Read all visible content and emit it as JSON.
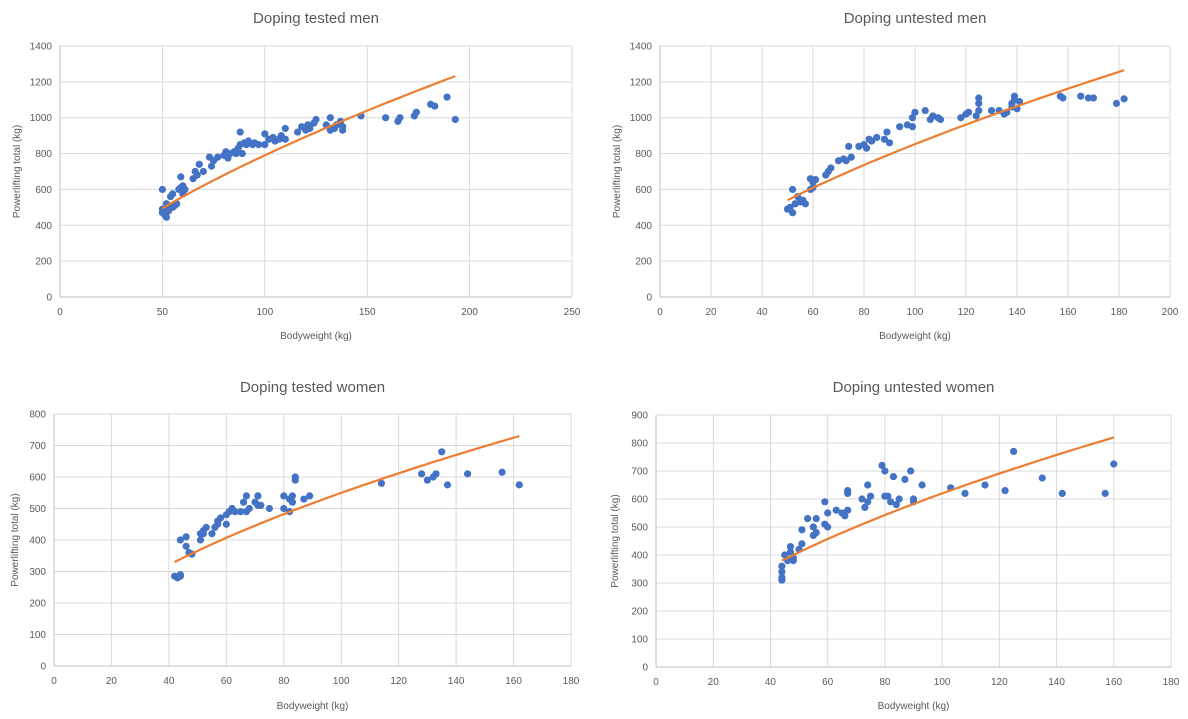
{
  "chart_data": [
    {
      "type": "scatter",
      "title": "Doping tested men",
      "xlabel": "Bodyweight (kg)",
      "ylabel": "Powerlifting total (kg)",
      "xlim": [
        0,
        250
      ],
      "xstep": 50,
      "ylim": [
        0,
        1400
      ],
      "ystep": 200,
      "grid": true,
      "colors": {
        "points": "#4472c4",
        "trend": "#ed7d31"
      },
      "trendline": {
        "type": "power",
        "x": [
          50,
          193
        ],
        "y": [
          495,
          1232
        ]
      },
      "points": [
        [
          50,
          490
        ],
        [
          50,
          470
        ],
        [
          51,
          460
        ],
        [
          52,
          445
        ],
        [
          52,
          500
        ],
        [
          53,
          480
        ],
        [
          50,
          600
        ],
        [
          52,
          520
        ],
        [
          54,
          560
        ],
        [
          55,
          575
        ],
        [
          55,
          500
        ],
        [
          56,
          510
        ],
        [
          57,
          520
        ],
        [
          58,
          600
        ],
        [
          59,
          610
        ],
        [
          59,
          670
        ],
        [
          60,
          575
        ],
        [
          60,
          620
        ],
        [
          61,
          600
        ],
        [
          65,
          660
        ],
        [
          66,
          700
        ],
        [
          67,
          680
        ],
        [
          68,
          740
        ],
        [
          70,
          700
        ],
        [
          73,
          780
        ],
        [
          74,
          730
        ],
        [
          75,
          760
        ],
        [
          77,
          780
        ],
        [
          80,
          790
        ],
        [
          81,
          810
        ],
        [
          82,
          775
        ],
        [
          83,
          800
        ],
        [
          85,
          810
        ],
        [
          86,
          800
        ],
        [
          87,
          830
        ],
        [
          88,
          850
        ],
        [
          88,
          920
        ],
        [
          89,
          800
        ],
        [
          90,
          860
        ],
        [
          91,
          850
        ],
        [
          92,
          870
        ],
        [
          94,
          850
        ],
        [
          95,
          860
        ],
        [
          97,
          850
        ],
        [
          100,
          850
        ],
        [
          100,
          910
        ],
        [
          102,
          880
        ],
        [
          104,
          890
        ],
        [
          105,
          870
        ],
        [
          107,
          880
        ],
        [
          108,
          900
        ],
        [
          110,
          940
        ],
        [
          110,
          880
        ],
        [
          116,
          920
        ],
        [
          118,
          950
        ],
        [
          120,
          930
        ],
        [
          121,
          960
        ],
        [
          122,
          940
        ],
        [
          124,
          970
        ],
        [
          125,
          990
        ],
        [
          130,
          960
        ],
        [
          132,
          1000
        ],
        [
          132,
          930
        ],
        [
          134,
          940
        ],
        [
          135,
          960
        ],
        [
          137,
          980
        ],
        [
          138,
          930
        ],
        [
          138,
          950
        ],
        [
          147,
          1010
        ],
        [
          159,
          1000
        ],
        [
          165,
          980
        ],
        [
          166,
          1000
        ],
        [
          173,
          1010
        ],
        [
          174,
          1030
        ],
        [
          181,
          1075
        ],
        [
          183,
          1065
        ],
        [
          189,
          1115
        ],
        [
          193,
          990
        ]
      ]
    },
    {
      "type": "scatter",
      "title": "Doping untested men",
      "xlabel": "Bodyweight (kg)",
      "ylabel": "Powerlifting total (kg)",
      "xlim": [
        0,
        200
      ],
      "xstep": 20,
      "ylim": [
        0,
        1400
      ],
      "ystep": 200,
      "grid": true,
      "colors": {
        "points": "#4472c4",
        "trend": "#ed7d31"
      },
      "trendline": {
        "type": "power",
        "x": [
          50,
          182
        ],
        "y": [
          540,
          1265
        ]
      },
      "points": [
        [
          50,
          490
        ],
        [
          51,
          500
        ],
        [
          52,
          470
        ],
        [
          52,
          600
        ],
        [
          53,
          520
        ],
        [
          54,
          560
        ],
        [
          55,
          530
        ],
        [
          56,
          540
        ],
        [
          57,
          520
        ],
        [
          59,
          600
        ],
        [
          59,
          660
        ],
        [
          60,
          610
        ],
        [
          60,
          640
        ],
        [
          61,
          655
        ],
        [
          65,
          680
        ],
        [
          66,
          700
        ],
        [
          67,
          720
        ],
        [
          70,
          760
        ],
        [
          72,
          770
        ],
        [
          73,
          760
        ],
        [
          74,
          840
        ],
        [
          75,
          780
        ],
        [
          78,
          840
        ],
        [
          80,
          850
        ],
        [
          81,
          830
        ],
        [
          82,
          880
        ],
        [
          83,
          870
        ],
        [
          85,
          890
        ],
        [
          88,
          880
        ],
        [
          89,
          920
        ],
        [
          90,
          860
        ],
        [
          94,
          950
        ],
        [
          97,
          960
        ],
        [
          99,
          1000
        ],
        [
          99,
          950
        ],
        [
          100,
          1030
        ],
        [
          104,
          1040
        ],
        [
          106,
          990
        ],
        [
          107,
          1010
        ],
        [
          109,
          1000
        ],
        [
          110,
          990
        ],
        [
          118,
          1000
        ],
        [
          120,
          1020
        ],
        [
          121,
          1030
        ],
        [
          124,
          1010
        ],
        [
          125,
          1040
        ],
        [
          125,
          1080
        ],
        [
          125,
          1110
        ],
        [
          130,
          1040
        ],
        [
          133,
          1040
        ],
        [
          135,
          1020
        ],
        [
          136,
          1030
        ],
        [
          138,
          1060
        ],
        [
          138,
          1080
        ],
        [
          139,
          1100
        ],
        [
          139,
          1120
        ],
        [
          140,
          1050
        ],
        [
          141,
          1090
        ],
        [
          157,
          1120
        ],
        [
          158,
          1110
        ],
        [
          165,
          1120
        ],
        [
          168,
          1110
        ],
        [
          170,
          1110
        ],
        [
          179,
          1080
        ],
        [
          182,
          1105
        ]
      ]
    },
    {
      "type": "scatter",
      "title": "Doping tested women",
      "xlabel": "Bodyweight (kg)",
      "ylabel": "Powerlifting total (kg)",
      "xlim": [
        0,
        180
      ],
      "xstep": 20,
      "ylim": [
        0,
        800
      ],
      "ystep": 100,
      "grid": true,
      "colors": {
        "points": "#4472c4",
        "trend": "#ed7d31"
      },
      "trendline": {
        "type": "power",
        "x": [
          42,
          162
        ],
        "y": [
          330,
          730
        ]
      },
      "points": [
        [
          42,
          285
        ],
        [
          43,
          280
        ],
        [
          44,
          285
        ],
        [
          44,
          290
        ],
        [
          44,
          400
        ],
        [
          46,
          380
        ],
        [
          46,
          410
        ],
        [
          47,
          360
        ],
        [
          48,
          355
        ],
        [
          51,
          420
        ],
        [
          51,
          400
        ],
        [
          52,
          420
        ],
        [
          52,
          430
        ],
        [
          53,
          440
        ],
        [
          55,
          420
        ],
        [
          56,
          440
        ],
        [
          57,
          450
        ],
        [
          57,
          460
        ],
        [
          58,
          470
        ],
        [
          60,
          450
        ],
        [
          60,
          480
        ],
        [
          61,
          490
        ],
        [
          62,
          500
        ],
        [
          63,
          490
        ],
        [
          65,
          490
        ],
        [
          66,
          520
        ],
        [
          67,
          540
        ],
        [
          67,
          490
        ],
        [
          68,
          500
        ],
        [
          70,
          520
        ],
        [
          71,
          540
        ],
        [
          71,
          510
        ],
        [
          72,
          510
        ],
        [
          75,
          500
        ],
        [
          80,
          540
        ],
        [
          80,
          500
        ],
        [
          82,
          530
        ],
        [
          82,
          490
        ],
        [
          83,
          520
        ],
        [
          83,
          540
        ],
        [
          84,
          600
        ],
        [
          84,
          590
        ],
        [
          87,
          530
        ],
        [
          89,
          540
        ],
        [
          114,
          580
        ],
        [
          128,
          610
        ],
        [
          130,
          590
        ],
        [
          132,
          600
        ],
        [
          133,
          610
        ],
        [
          135,
          680
        ],
        [
          137,
          575
        ],
        [
          144,
          610
        ],
        [
          156,
          615
        ],
        [
          162,
          575
        ]
      ]
    },
    {
      "type": "scatter",
      "title": "Doping untested women",
      "xlabel": "Bodyweight (kg)",
      "ylabel": "Powerlifting total (kg)",
      "xlim": [
        0,
        180
      ],
      "xstep": 20,
      "ylim": [
        0,
        900
      ],
      "ystep": 100,
      "grid": true,
      "colors": {
        "points": "#4472c4",
        "trend": "#ed7d31"
      },
      "trendline": {
        "type": "power",
        "x": [
          44,
          160
        ],
        "y": [
          380,
          820
        ]
      },
      "points": [
        [
          44,
          310
        ],
        [
          44,
          320
        ],
        [
          44,
          340
        ],
        [
          44,
          360
        ],
        [
          45,
          400
        ],
        [
          46,
          380
        ],
        [
          47,
          410
        ],
        [
          47,
          430
        ],
        [
          48,
          390
        ],
        [
          48,
          380
        ],
        [
          50,
          420
        ],
        [
          51,
          440
        ],
        [
          51,
          490
        ],
        [
          53,
          530
        ],
        [
          55,
          470
        ],
        [
          55,
          500
        ],
        [
          56,
          530
        ],
        [
          56,
          480
        ],
        [
          59,
          510
        ],
        [
          59,
          590
        ],
        [
          60,
          500
        ],
        [
          60,
          550
        ],
        [
          63,
          560
        ],
        [
          65,
          550
        ],
        [
          66,
          540
        ],
        [
          67,
          620
        ],
        [
          67,
          630
        ],
        [
          67,
          560
        ],
        [
          72,
          600
        ],
        [
          73,
          570
        ],
        [
          74,
          590
        ],
        [
          74,
          650
        ],
        [
          75,
          610
        ],
        [
          79,
          720
        ],
        [
          80,
          610
        ],
        [
          80,
          700
        ],
        [
          81,
          610
        ],
        [
          82,
          590
        ],
        [
          83,
          680
        ],
        [
          84,
          580
        ],
        [
          85,
          600
        ],
        [
          87,
          670
        ],
        [
          89,
          700
        ],
        [
          90,
          590
        ],
        [
          90,
          600
        ],
        [
          93,
          650
        ],
        [
          103,
          640
        ],
        [
          108,
          620
        ],
        [
          115,
          650
        ],
        [
          122,
          630
        ],
        [
          125,
          770
        ],
        [
          135,
          675
        ],
        [
          142,
          620
        ],
        [
          157,
          620
        ],
        [
          160,
          725
        ]
      ]
    }
  ]
}
